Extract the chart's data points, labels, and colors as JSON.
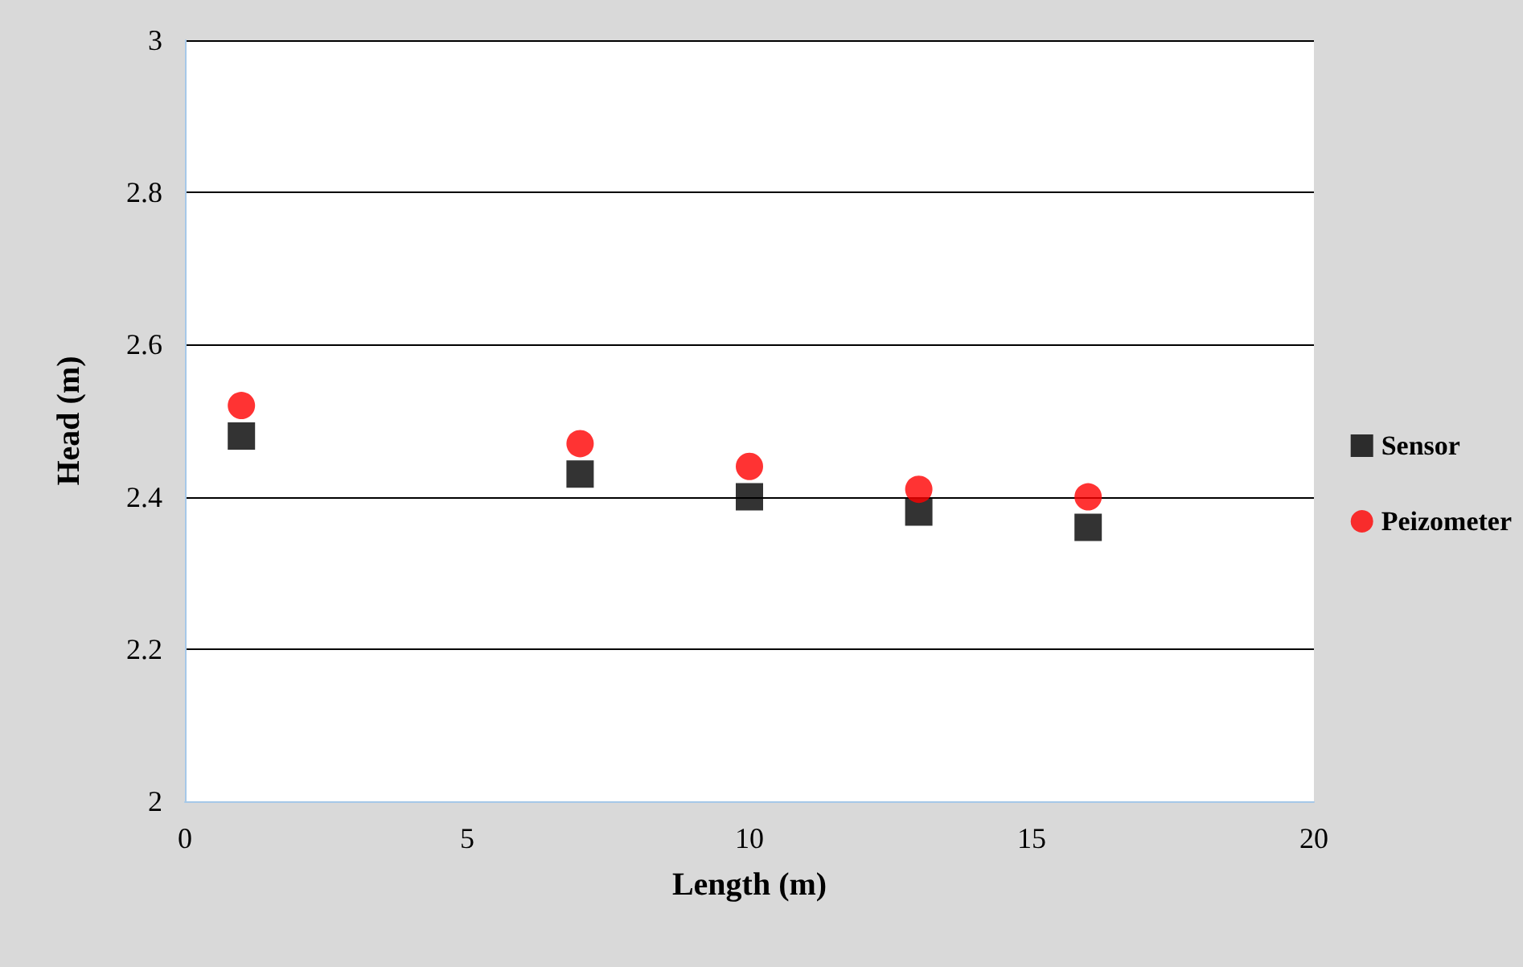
{
  "chart_data": {
    "type": "scatter",
    "xlabel": "Length (m)",
    "ylabel": "Head (m)",
    "x": [
      1,
      7,
      10,
      13,
      16
    ],
    "series": [
      {
        "name": "Sensor",
        "color": "#000000",
        "marker": "square",
        "values": [
          2.48,
          2.43,
          2.4,
          2.38,
          2.36
        ]
      },
      {
        "name": "Peizometer",
        "color": "#ff0000",
        "marker": "circle",
        "values": [
          2.52,
          2.47,
          2.44,
          2.41,
          2.4
        ]
      }
    ],
    "xlim": [
      0,
      20
    ],
    "xticks": [
      0,
      5,
      10,
      15,
      20
    ],
    "ylim": [
      2,
      3
    ],
    "yticks": [
      2,
      2.2,
      2.4,
      2.6,
      2.8,
      3
    ],
    "grid": "y",
    "legend": "right"
  }
}
